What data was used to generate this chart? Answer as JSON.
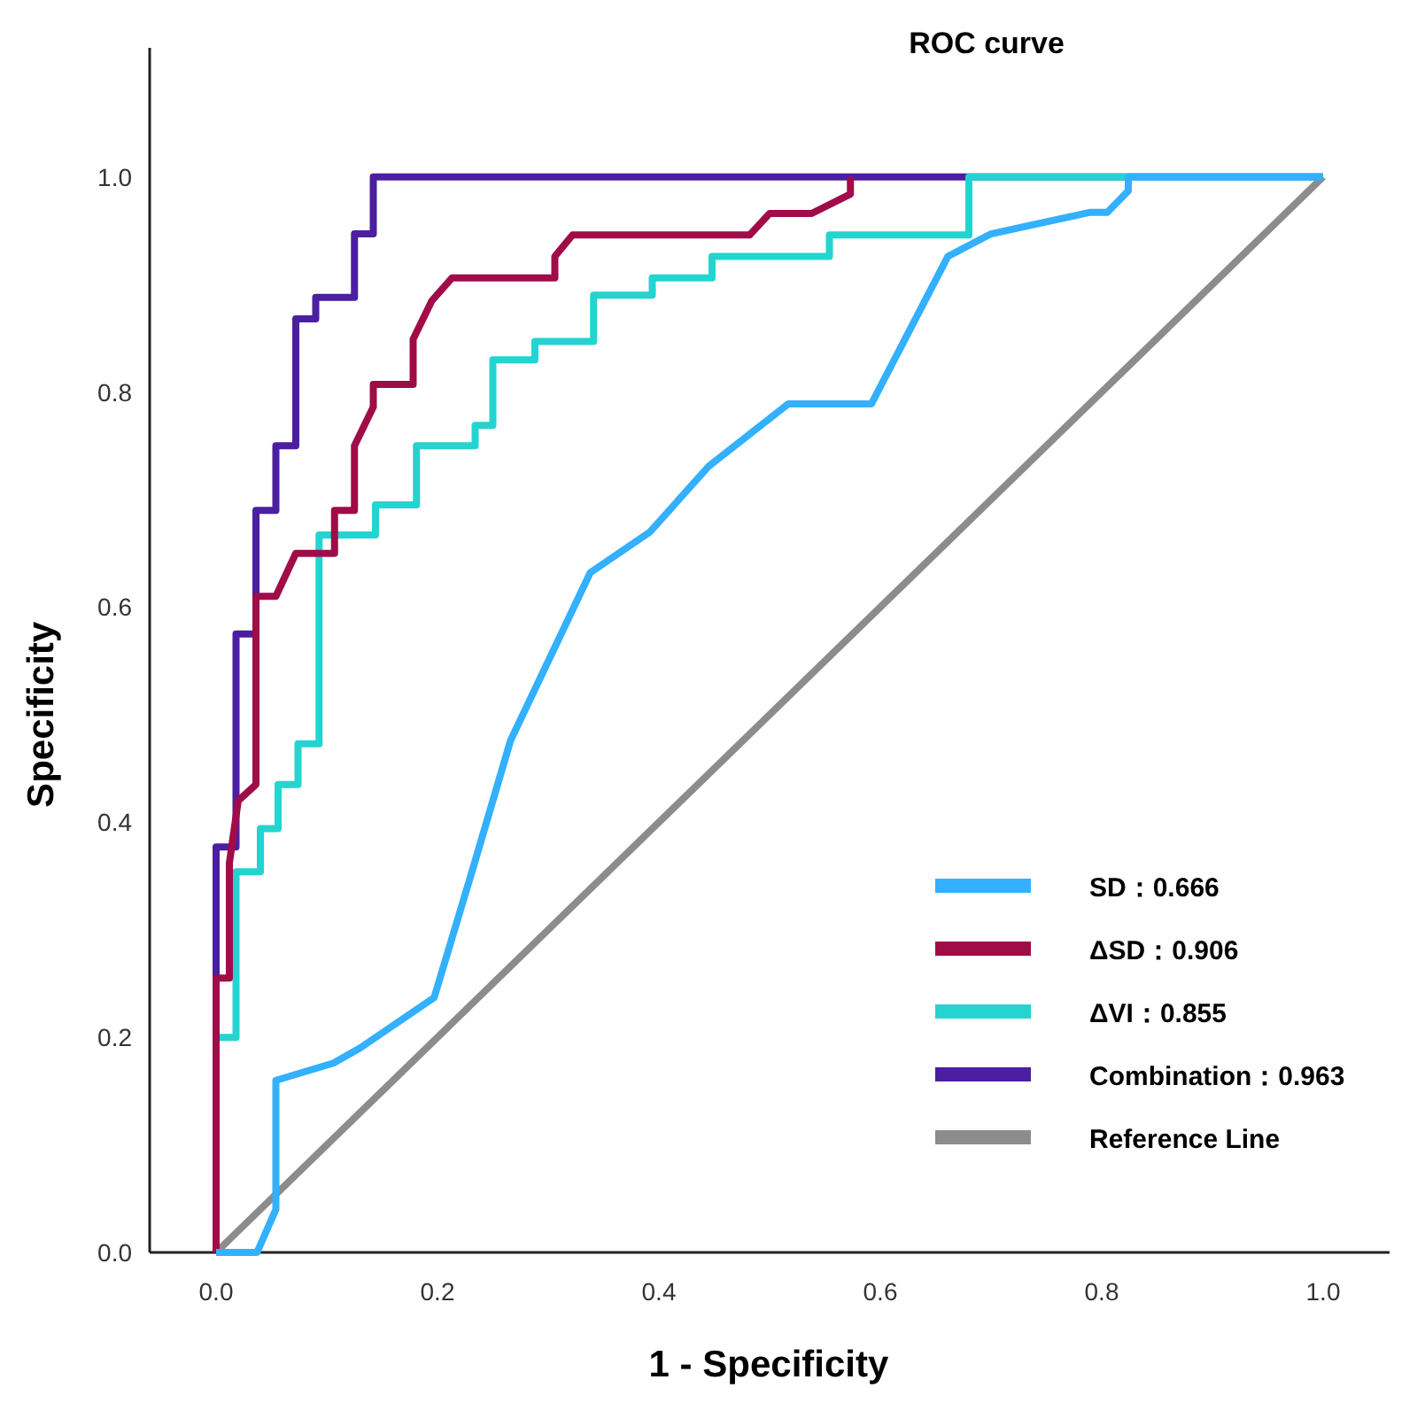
{
  "chart_data": {
    "type": "line",
    "title": "ROC curve",
    "xlabel": "1 - Specificity",
    "ylabel": "Specificity",
    "xlim": [
      -0.06,
      1.06
    ],
    "ylim": [
      0,
      1.12
    ],
    "xticks": [
      {
        "value": 0,
        "label": "0.0"
      },
      {
        "value": 0.2,
        "label": "0.2"
      },
      {
        "value": 0.4,
        "label": "0.4"
      },
      {
        "value": 0.6,
        "label": "0.6"
      },
      {
        "value": 0.8,
        "label": "0.8"
      },
      {
        "value": 1,
        "label": "1.0"
      }
    ],
    "yticks": [
      {
        "value": 0,
        "label": "0.0"
      },
      {
        "value": 0.2,
        "label": "0.2"
      },
      {
        "value": 0.4,
        "label": "0.4"
      },
      {
        "value": 0.6,
        "label": "0.6"
      },
      {
        "value": 0.8,
        "label": "0.8"
      },
      {
        "value": 1,
        "label": "1.0"
      }
    ],
    "grid": false,
    "legend": "bottom right",
    "marker": "none",
    "line_style": "solid",
    "series": [
      {
        "name": "SD：0.666",
        "color": "#33b0ff",
        "x": [
          0,
          0.037,
          0.054,
          0.054,
          0.106,
          0.13,
          0.197,
          0.232,
          0.266,
          0.338,
          0.392,
          0.445,
          0.517,
          0.592,
          0.661,
          0.7,
          0.789,
          0.805,
          0.824,
          0.824,
          1
        ],
        "values": [
          0,
          0,
          0.04,
          0.16,
          0.176,
          0.19,
          0.237,
          0.357,
          0.476,
          0.632,
          0.67,
          0.731,
          0.789,
          0.789,
          0.926,
          0.947,
          0.967,
          0.967,
          0.987,
          1,
          1
        ]
      },
      {
        "name": "ΔSD：0.906",
        "color": "#a00c48",
        "x": [
          0,
          0,
          0.012,
          0.012,
          0.02,
          0.036,
          0.036,
          0.054,
          0.072,
          0.107,
          0.107,
          0.125,
          0.125,
          0.142,
          0.142,
          0.178,
          0.178,
          0.195,
          0.213,
          0.306,
          0.306,
          0.322,
          0.482,
          0.5,
          0.538,
          0.573,
          0.573
        ],
        "values": [
          0,
          0.255,
          0.255,
          0.362,
          0.42,
          0.435,
          0.61,
          0.61,
          0.65,
          0.65,
          0.69,
          0.69,
          0.75,
          0.786,
          0.807,
          0.807,
          0.849,
          0.885,
          0.906,
          0.906,
          0.926,
          0.946,
          0.946,
          0.966,
          0.966,
          0.984,
          1
        ]
      },
      {
        "name": "ΔVI：0.855",
        "color": "#24d4d0",
        "x": [
          0,
          0,
          0.018,
          0.018,
          0.04,
          0.04,
          0.056,
          0.056,
          0.074,
          0.074,
          0.093,
          0.093,
          0.144,
          0.144,
          0.181,
          0.181,
          0.234,
          0.234,
          0.25,
          0.25,
          0.288,
          0.288,
          0.341,
          0.341,
          0.394,
          0.394,
          0.448,
          0.448,
          0.554,
          0.554,
          0.68,
          0.68,
          1
        ],
        "values": [
          0,
          0.2,
          0.2,
          0.354,
          0.354,
          0.394,
          0.394,
          0.435,
          0.435,
          0.473,
          0.473,
          0.667,
          0.667,
          0.695,
          0.695,
          0.75,
          0.75,
          0.769,
          0.769,
          0.83,
          0.83,
          0.847,
          0.847,
          0.89,
          0.89,
          0.906,
          0.906,
          0.926,
          0.926,
          0.946,
          0.946,
          1,
          1
        ]
      },
      {
        "name": "Combination：0.963",
        "color": "#4b1fa0",
        "x": [
          0,
          0,
          0.018,
          0.018,
          0.036,
          0.036,
          0.054,
          0.054,
          0.072,
          0.072,
          0.09,
          0.09,
          0.125,
          0.125,
          0.142,
          0.142,
          1
        ],
        "values": [
          0,
          0.377,
          0.377,
          0.575,
          0.575,
          0.69,
          0.69,
          0.75,
          0.75,
          0.868,
          0.868,
          0.888,
          0.888,
          0.947,
          0.947,
          1,
          1
        ]
      },
      {
        "name": "Reference Line",
        "color": "#8c8c8c",
        "x": [
          0,
          1
        ],
        "values": [
          0,
          1
        ]
      }
    ]
  }
}
